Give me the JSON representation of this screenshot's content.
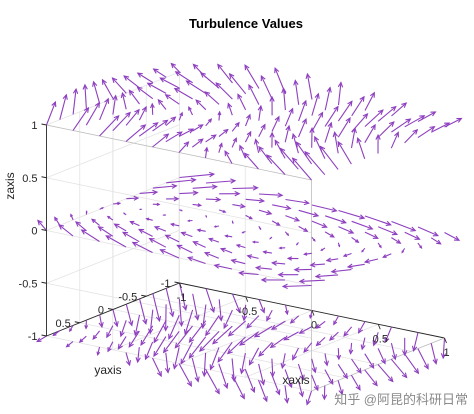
{
  "chart_data": {
    "type": "quiver3",
    "title": "Turbulence Values",
    "xlabel": "xaxis",
    "ylabel": "yaxis",
    "zlabel": "zaxis",
    "xlim": [
      -1,
      1
    ],
    "ylim": [
      -1,
      1
    ],
    "zlim": [
      -1,
      1
    ],
    "xticks": [
      "-1",
      "-0.5",
      "0",
      "0.5",
      "1"
    ],
    "yticks": [
      "-1",
      "-0.5",
      "0",
      "0.5"
    ],
    "zticks": [
      "-1",
      "-0.5",
      "0",
      "0.5",
      "1"
    ],
    "grid": true,
    "arrow_color": "#8e3fbf",
    "layers_z": [
      -1,
      0,
      1
    ],
    "grid_points_per_axis": 11
  },
  "watermark": "知乎 @阿昆的科研日常"
}
